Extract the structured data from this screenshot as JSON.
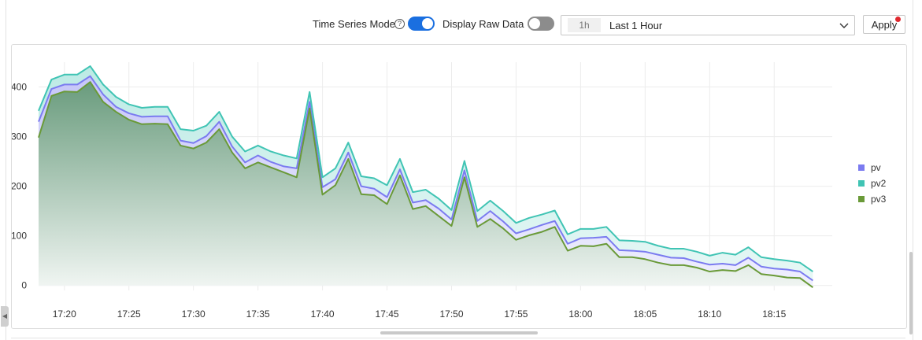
{
  "toolbar": {
    "time_series_mode_label": "Time Series Mode",
    "help_glyph": "?",
    "time_series_mode_on": true,
    "display_raw_data_label": "Display Raw Data",
    "display_raw_data_on": false,
    "range_short": "1h",
    "range_label": "Last 1 Hour",
    "apply_label": "Apply",
    "accent_color": "#1a6fe0",
    "notify_color": "#e0282e"
  },
  "icons": {
    "help": "help-icon",
    "dropdown": "chevron-down-icon",
    "collapse": "chevron-left-icon"
  },
  "chart_data": {
    "type": "area",
    "title": "",
    "xlabel": "",
    "ylabel": "",
    "ylim": [
      -10,
      450
    ],
    "yticks": [
      0,
      100,
      200,
      300,
      400
    ],
    "xlim": [
      "17:18:00",
      "18:19:30"
    ],
    "xticks": [
      "17:20",
      "17:25",
      "17:30",
      "17:35",
      "17:40",
      "17:45",
      "17:50",
      "17:55",
      "18:00",
      "18:05",
      "18:10",
      "18:15"
    ],
    "grid": true,
    "legend_position": "right",
    "x": [
      "17:18",
      "17:19",
      "17:20",
      "17:21",
      "17:22",
      "17:23",
      "17:24",
      "17:25",
      "17:26",
      "17:27",
      "17:28",
      "17:29",
      "17:30",
      "17:31",
      "17:32",
      "17:33",
      "17:34",
      "17:35",
      "17:36",
      "17:37",
      "17:38",
      "17:39",
      "17:40",
      "17:41",
      "17:42",
      "17:43",
      "17:44",
      "17:45",
      "17:46",
      "17:47",
      "17:48",
      "17:49",
      "17:50",
      "17:51",
      "17:52",
      "17:53",
      "17:54",
      "17:55",
      "17:56",
      "17:57",
      "17:58",
      "17:59",
      "18:00",
      "18:01",
      "18:02",
      "18:03",
      "18:04",
      "18:05",
      "18:06",
      "18:07",
      "18:08",
      "18:09",
      "18:10",
      "18:11",
      "18:12",
      "18:13",
      "18:14",
      "18:15",
      "18:16",
      "18:17",
      "18:18"
    ],
    "series": [
      {
        "name": "pv",
        "color": "#7b7bf0",
        "values": [
          330,
          396,
          405,
          405,
          422,
          385,
          360,
          347,
          340,
          341,
          341,
          292,
          287,
          301,
          330,
          280,
          248,
          262,
          249,
          240,
          236,
          370,
          198,
          214,
          268,
          200,
          195,
          178,
          234,
          167,
          172,
          155,
          133,
          232,
          130,
          150,
          129,
          105,
          113,
          122,
          130,
          84,
          95,
          96,
          98,
          71,
          70,
          68,
          62,
          56,
          55,
          48,
          42,
          44,
          41,
          56,
          38,
          34,
          32,
          28,
          10
        ]
      },
      {
        "name": "pv2",
        "color": "#40c4b4",
        "values": [
          352,
          415,
          425,
          425,
          442,
          405,
          380,
          365,
          358,
          360,
          360,
          315,
          312,
          322,
          350,
          300,
          270,
          282,
          270,
          262,
          256,
          390,
          218,
          236,
          288,
          220,
          216,
          202,
          255,
          188,
          193,
          175,
          152,
          251,
          150,
          171,
          150,
          126,
          136,
          143,
          151,
          103,
          114,
          114,
          118,
          91,
          90,
          88,
          80,
          74,
          74,
          68,
          60,
          66,
          62,
          77,
          57,
          53,
          50,
          46,
          28
        ]
      },
      {
        "name": "pv3",
        "color": "#6a9a38",
        "values": [
          298,
          382,
          391,
          390,
          410,
          370,
          350,
          334,
          325,
          326,
          325,
          282,
          276,
          288,
          315,
          268,
          236,
          248,
          238,
          228,
          218,
          357,
          183,
          202,
          255,
          184,
          182,
          164,
          222,
          154,
          160,
          140,
          120,
          218,
          118,
          134,
          115,
          92,
          101,
          108,
          118,
          70,
          80,
          79,
          84,
          57,
          57,
          53,
          46,
          41,
          41,
          36,
          28,
          31,
          29,
          41,
          23,
          20,
          16,
          15,
          -4
        ]
      }
    ]
  }
}
